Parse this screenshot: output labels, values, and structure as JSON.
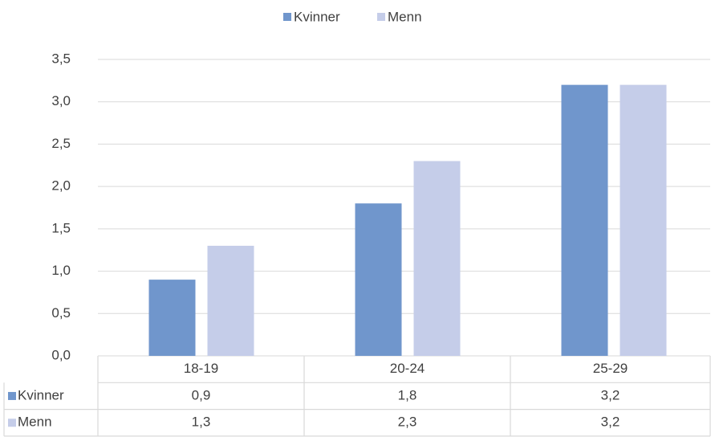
{
  "chart_data": {
    "type": "bar",
    "categories": [
      "18-19",
      "20-24",
      "25-29"
    ],
    "series": [
      {
        "name": "Kvinner",
        "color": "#7096cc",
        "values": [
          0.9,
          1.8,
          3.2
        ],
        "value_labels": [
          "0,9",
          "1,8",
          "3,2"
        ]
      },
      {
        "name": "Menn",
        "color": "#c5cde9",
        "values": [
          1.3,
          2.3,
          3.2
        ],
        "value_labels": [
          "1,3",
          "2,3",
          "3,2"
        ]
      }
    ],
    "ylim": [
      0,
      3.5
    ],
    "yticks": [
      {
        "value": 0,
        "label": "0,0"
      },
      {
        "value": 0.5,
        "label": "0,5"
      },
      {
        "value": 1,
        "label": "1,0"
      },
      {
        "value": 1.5,
        "label": "1,5"
      },
      {
        "value": 2,
        "label": "2,0"
      },
      {
        "value": 2.5,
        "label": "2,5"
      },
      {
        "value": 3,
        "label": "3,0"
      },
      {
        "value": 3.5,
        "label": "3,5"
      }
    ],
    "grid": true,
    "legend": "top",
    "data_table": true
  }
}
